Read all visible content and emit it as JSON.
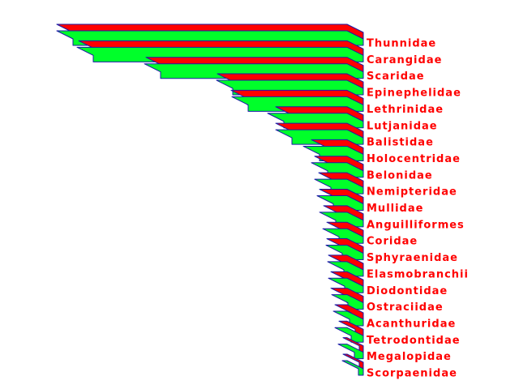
{
  "chart_data": {
    "type": "bar3d",
    "orientation": "horizontal",
    "categories": [
      "Thunnidae",
      "Carangidae",
      "Scaridae",
      "Epinephelidae",
      "Lethrinidae",
      "Lutjanidae",
      "Balistidae",
      "Holocentridae",
      "Belonidae",
      "Nemipteridae",
      "Mullidae",
      "Anguilliformes",
      "Coridae",
      "Sphyraenidae",
      "Elasmobranchii",
      "Diodontidae",
      "Ostraciidae",
      "Acanthuridae",
      "Tetrodontidae",
      "Megalopidae",
      "Scorpaenidae"
    ],
    "series": [
      {
        "color": "#ff0000",
        "values": [
          358,
          331,
          248,
          160,
          143,
          88,
          88,
          44,
          40,
          35,
          34,
          29,
          25,
          25,
          23,
          20,
          20,
          15,
          10,
          5,
          5
        ]
      },
      {
        "color": "#00ff2a",
        "values": [
          358,
          333,
          250,
          161,
          142,
          98,
          88,
          54,
          44,
          40,
          37,
          34,
          30,
          26,
          24,
          23,
          19,
          17,
          15,
          11,
          6
        ]
      }
    ]
  }
}
